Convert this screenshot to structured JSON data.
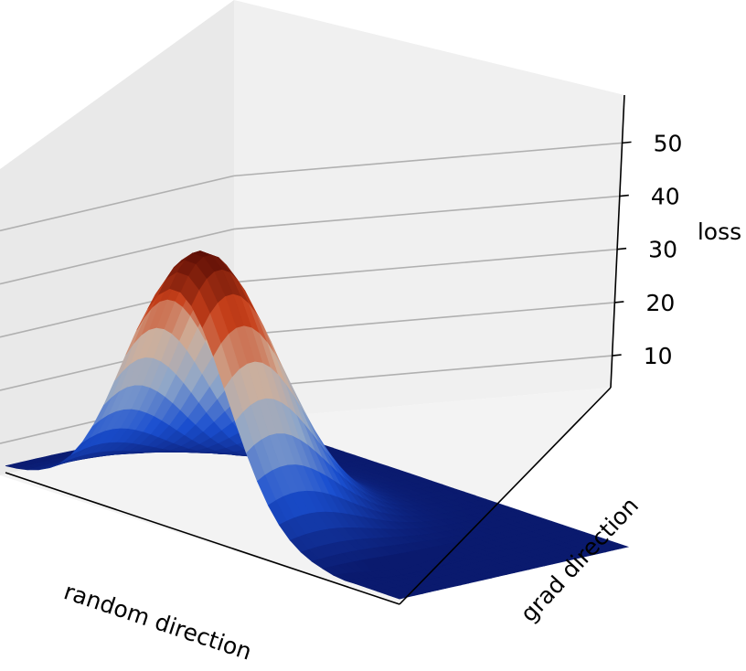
{
  "chart_data": {
    "type": "surface",
    "title": "",
    "xlabel": "random direction",
    "ylabel": "grad direction",
    "zlabel": "loss",
    "z_ticks": [
      10,
      20,
      30,
      40,
      50
    ],
    "z_range": [
      4,
      59
    ],
    "surface": {
      "shape": "single smooth hump along the random direction, flat along most of the grad direction",
      "peak_loss": 55,
      "base_loss": 5
    },
    "colormap": {
      "name": "diverging blue-white-red (coolwarm-like, dark ends)",
      "stops": [
        "#0a1a6e",
        "#1a4fd0",
        "#8fa7c9",
        "#d0b09a",
        "#c8401a",
        "#5a0d05"
      ]
    },
    "grid": true
  }
}
